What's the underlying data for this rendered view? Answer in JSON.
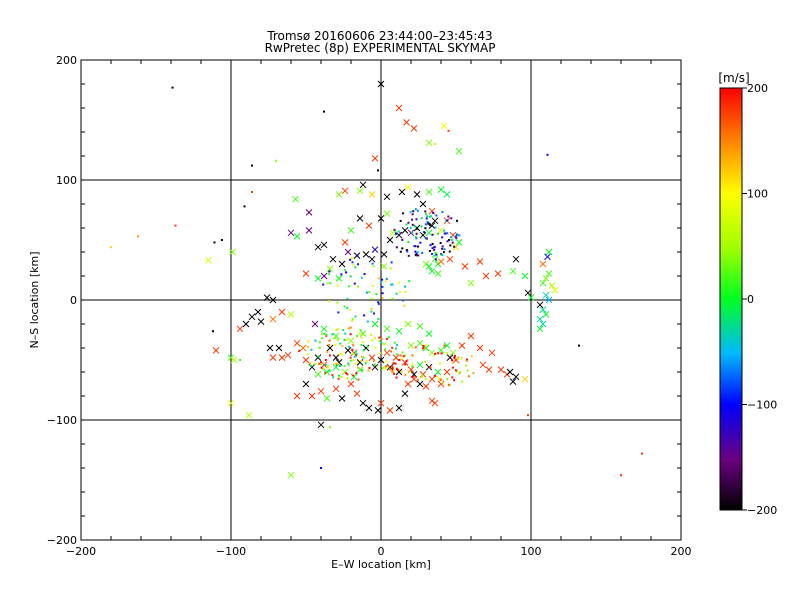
{
  "chart_data": {
    "type": "scatter",
    "title": "Tromsø 20160606 23:44:00–23:45:43",
    "subtitle": "RwPretec (8p) EXPERIMENTAL SKYMAP",
    "xlabel": "E–W location [km]",
    "ylabel": "N–S location [km]",
    "xlim": [
      -200,
      200
    ],
    "ylim": [
      -200,
      200
    ],
    "x_ticks": [
      "−200",
      "−100",
      "0",
      "100",
      "200"
    ],
    "y_ticks": [
      "−200",
      "−100",
      "0",
      "100",
      "200"
    ],
    "grid": "lines at ±100 and 0 km",
    "colorbar": {
      "label": "[m/s]",
      "range": [
        -200,
        200
      ],
      "ticks": [
        "200",
        "100",
        "0",
        "−100",
        "−200"
      ],
      "colormap": "black-purple-blue-cyan-green-yellow-red"
    },
    "marker_legend": "dots and x-crosses, color = velocity [m/s]",
    "points": [
      [
        0,
        180,
        -200,
        "x"
      ],
      [
        12,
        160,
        180,
        "x"
      ],
      [
        17,
        148,
        180,
        "x"
      ],
      [
        22,
        143,
        180,
        "x"
      ],
      [
        -38,
        157,
        -200,
        "."
      ],
      [
        -139,
        177,
        -200,
        "."
      ],
      [
        42,
        145,
        100,
        "x"
      ],
      [
        45,
        141,
        180,
        "."
      ],
      [
        32,
        131,
        40,
        "x"
      ],
      [
        36,
        130,
        60,
        "."
      ],
      [
        52,
        124,
        20,
        "x"
      ],
      [
        111,
        121,
        -100,
        "."
      ],
      [
        -4,
        118,
        180,
        "x"
      ],
      [
        -2,
        108,
        -200,
        "."
      ],
      [
        -86,
        112,
        -200,
        "."
      ],
      [
        -70,
        116,
        40,
        "."
      ],
      [
        -57,
        84,
        20,
        "x"
      ],
      [
        -48,
        73,
        -150,
        "x"
      ],
      [
        -28,
        88,
        40,
        "x"
      ],
      [
        -24,
        91,
        180,
        "x"
      ],
      [
        -14,
        91,
        40,
        "x"
      ],
      [
        -12,
        96,
        -200,
        "x"
      ],
      [
        -6,
        88,
        120,
        "x"
      ],
      [
        4,
        86,
        -200,
        "x"
      ],
      [
        14,
        90,
        -200,
        "x"
      ],
      [
        18,
        94,
        100,
        "x"
      ],
      [
        24,
        88,
        -200,
        "x"
      ],
      [
        32,
        90,
        20,
        "x"
      ],
      [
        40,
        92,
        0,
        "x"
      ],
      [
        44,
        88,
        -10,
        "x"
      ],
      [
        28,
        80,
        -200,
        "x"
      ],
      [
        34,
        74,
        180,
        "x"
      ],
      [
        -86,
        90,
        180,
        "."
      ],
      [
        -91,
        78,
        -200,
        "."
      ],
      [
        -106,
        50,
        -200,
        "."
      ],
      [
        -111,
        48,
        -200,
        "."
      ],
      [
        -99,
        40,
        40,
        "x"
      ],
      [
        -115,
        33,
        80,
        "x"
      ],
      [
        -180,
        44,
        120,
        "."
      ],
      [
        -162,
        53,
        140,
        "."
      ],
      [
        -137,
        62,
        180,
        "."
      ],
      [
        -56,
        53,
        0,
        "x"
      ],
      [
        -60,
        56,
        -150,
        "x"
      ],
      [
        -48,
        58,
        -150,
        "x"
      ],
      [
        -42,
        44,
        -200,
        "x"
      ],
      [
        -38,
        46,
        -200,
        "x"
      ],
      [
        -22,
        40,
        -150,
        "x"
      ],
      [
        -16,
        37,
        -200,
        "x"
      ],
      [
        -10,
        38,
        -200,
        "x"
      ],
      [
        -6,
        34,
        -200,
        "x"
      ],
      [
        -4,
        42,
        -120,
        "x"
      ],
      [
        2,
        38,
        -200,
        "x"
      ],
      [
        6,
        50,
        -200,
        "x"
      ],
      [
        8,
        56,
        60,
        "x"
      ],
      [
        12,
        54,
        -200,
        "x"
      ],
      [
        16,
        58,
        -200,
        "x"
      ],
      [
        20,
        56,
        -150,
        "x"
      ],
      [
        24,
        60,
        -200,
        "x"
      ],
      [
        28,
        54,
        -200,
        "x"
      ],
      [
        32,
        56,
        0,
        "x"
      ],
      [
        34,
        62,
        -200,
        "x"
      ],
      [
        36,
        66,
        -200,
        "x"
      ],
      [
        40,
        58,
        80,
        "x"
      ],
      [
        44,
        66,
        180,
        "x"
      ],
      [
        48,
        54,
        180,
        "x"
      ],
      [
        52,
        48,
        0,
        "x"
      ],
      [
        -8,
        62,
        180,
        "x"
      ],
      [
        -14,
        68,
        -200,
        "x"
      ],
      [
        -20,
        58,
        20,
        "x"
      ],
      [
        -24,
        48,
        180,
        "x"
      ],
      [
        0,
        68,
        -200,
        "x"
      ],
      [
        4,
        72,
        40,
        "x"
      ],
      [
        2,
        28,
        40,
        "x"
      ],
      [
        -26,
        30,
        -200,
        "x"
      ],
      [
        -32,
        34,
        -200,
        "x"
      ],
      [
        -34,
        26,
        40,
        "x"
      ],
      [
        -38,
        20,
        -150,
        "x"
      ],
      [
        -28,
        18,
        0,
        "x"
      ],
      [
        -42,
        18,
        0,
        "x"
      ],
      [
        -50,
        22,
        180,
        "x"
      ],
      [
        30,
        30,
        40,
        "x"
      ],
      [
        32,
        28,
        0,
        "x"
      ],
      [
        36,
        34,
        20,
        "x"
      ],
      [
        38,
        30,
        0,
        "x"
      ],
      [
        34,
        24,
        0,
        "x"
      ],
      [
        38,
        22,
        20,
        "x"
      ],
      [
        40,
        32,
        160,
        "x"
      ],
      [
        46,
        34,
        180,
        "x"
      ],
      [
        50,
        44,
        120,
        "x"
      ],
      [
        56,
        28,
        180,
        "x"
      ],
      [
        60,
        14,
        40,
        "x"
      ],
      [
        70,
        20,
        180,
        "x"
      ],
      [
        66,
        32,
        180,
        "x"
      ],
      [
        78,
        22,
        180,
        "x"
      ],
      [
        90,
        34,
        -200,
        "x"
      ],
      [
        88,
        24,
        20,
        "x"
      ],
      [
        96,
        20,
        0,
        "x"
      ],
      [
        98,
        6,
        -200,
        "x"
      ],
      [
        100,
        2,
        0,
        "x"
      ],
      [
        108,
        30,
        160,
        "x"
      ],
      [
        110,
        18,
        40,
        "x"
      ],
      [
        112,
        22,
        20,
        "x"
      ],
      [
        108,
        14,
        20,
        "x"
      ],
      [
        114,
        12,
        60,
        "x"
      ],
      [
        116,
        8,
        80,
        "x"
      ],
      [
        110,
        4,
        -30,
        "x"
      ],
      [
        112,
        0,
        -50,
        "x"
      ],
      [
        106,
        -4,
        -200,
        "x"
      ],
      [
        108,
        -8,
        -30,
        "x"
      ],
      [
        110,
        -12,
        0,
        "x"
      ],
      [
        106,
        -16,
        -30,
        "x"
      ],
      [
        108,
        -20,
        -30,
        "x"
      ],
      [
        111,
        36,
        -100,
        "x"
      ],
      [
        112,
        40,
        0,
        "x"
      ],
      [
        106,
        -24,
        0,
        "x"
      ],
      [
        132,
        -38,
        -200,
        "."
      ],
      [
        -76,
        2,
        -200,
        "x"
      ],
      [
        -72,
        0,
        -200,
        "x"
      ],
      [
        -82,
        -10,
        -200,
        "x"
      ],
      [
        -86,
        -14,
        -200,
        "x"
      ],
      [
        -90,
        -20,
        -200,
        "x"
      ],
      [
        -94,
        -24,
        180,
        "x"
      ],
      [
        -80,
        -18,
        -200,
        "x"
      ],
      [
        -72,
        -16,
        160,
        "x"
      ],
      [
        -66,
        -10,
        180,
        "x"
      ],
      [
        -60,
        -12,
        60,
        "x"
      ],
      [
        -112,
        -26,
        -200,
        "."
      ],
      [
        -110,
        -42,
        180,
        "x"
      ],
      [
        -100,
        -48,
        20,
        "x"
      ],
      [
        -94,
        -50,
        20,
        "."
      ],
      [
        -100,
        -86,
        80,
        "x"
      ],
      [
        -88,
        -96,
        60,
        "x"
      ],
      [
        -74,
        -40,
        -200,
        "x"
      ],
      [
        -72,
        -48,
        180,
        "x"
      ],
      [
        -68,
        -40,
        -200,
        "x"
      ],
      [
        -66,
        -48,
        180,
        "x"
      ],
      [
        -62,
        -46,
        180,
        "x"
      ],
      [
        -56,
        -36,
        180,
        "x"
      ],
      [
        -52,
        -40,
        160,
        "x"
      ],
      [
        -50,
        -50,
        180,
        "x"
      ],
      [
        -46,
        -56,
        -200,
        "x"
      ],
      [
        -42,
        -48,
        -200,
        "x"
      ],
      [
        -38,
        -54,
        180,
        "x"
      ],
      [
        -34,
        -40,
        -200,
        "x"
      ],
      [
        -30,
        -48,
        -200,
        "x"
      ],
      [
        -28,
        -52,
        -200,
        "x"
      ],
      [
        -22,
        -42,
        -200,
        "x"
      ],
      [
        -18,
        -44,
        180,
        "x"
      ],
      [
        -14,
        -52,
        -200,
        "x"
      ],
      [
        -10,
        -40,
        -200,
        "x"
      ],
      [
        -6,
        -48,
        180,
        "x"
      ],
      [
        -4,
        -56,
        -200,
        "x"
      ],
      [
        0,
        -50,
        -200,
        "x"
      ],
      [
        4,
        -44,
        180,
        "x"
      ],
      [
        6,
        -56,
        -200,
        "x"
      ],
      [
        10,
        -48,
        180,
        "x"
      ],
      [
        12,
        -60,
        -200,
        "x"
      ],
      [
        16,
        -52,
        180,
        "x"
      ],
      [
        20,
        -58,
        180,
        "x"
      ],
      [
        22,
        -62,
        -200,
        "x"
      ],
      [
        26,
        -54,
        0,
        "x"
      ],
      [
        28,
        -62,
        180,
        "x"
      ],
      [
        32,
        -56,
        -200,
        "x"
      ],
      [
        34,
        -66,
        180,
        "x"
      ],
      [
        38,
        -60,
        0,
        "x"
      ],
      [
        40,
        -70,
        180,
        "x"
      ],
      [
        44,
        -60,
        180,
        "x"
      ],
      [
        46,
        -48,
        -200,
        "x"
      ],
      [
        50,
        -50,
        180,
        "x"
      ],
      [
        54,
        -38,
        180,
        "x"
      ],
      [
        60,
        -30,
        180,
        "x"
      ],
      [
        66,
        -40,
        180,
        "x"
      ],
      [
        68,
        -54,
        180,
        "x"
      ],
      [
        72,
        -58,
        180,
        "x"
      ],
      [
        74,
        -44,
        180,
        "x"
      ],
      [
        80,
        -58,
        180,
        "x"
      ],
      [
        84,
        -62,
        180,
        "x"
      ],
      [
        88,
        -68,
        -200,
        "x"
      ],
      [
        86,
        -60,
        -200,
        "x"
      ],
      [
        90,
        -64,
        -200,
        "x"
      ],
      [
        96,
        -66,
        120,
        "x"
      ],
      [
        98,
        -96,
        180,
        "."
      ],
      [
        -40,
        -104,
        -200,
        "x"
      ],
      [
        -34,
        -106,
        40,
        "."
      ],
      [
        -60,
        -146,
        40,
        "x"
      ],
      [
        -40,
        -140,
        -100,
        "."
      ],
      [
        -50,
        -70,
        -200,
        "x"
      ],
      [
        -56,
        -80,
        180,
        "x"
      ],
      [
        -46,
        -80,
        180,
        "x"
      ],
      [
        -40,
        -76,
        180,
        "x"
      ],
      [
        -36,
        -82,
        20,
        "x"
      ],
      [
        -30,
        -74,
        180,
        "x"
      ],
      [
        -26,
        -82,
        -200,
        "x"
      ],
      [
        -20,
        -70,
        180,
        "x"
      ],
      [
        -16,
        -78,
        180,
        "x"
      ],
      [
        -12,
        -86,
        -200,
        "x"
      ],
      [
        -8,
        -90,
        -200,
        "x"
      ],
      [
        0,
        -86,
        180,
        "x"
      ],
      [
        6,
        -92,
        180,
        "x"
      ],
      [
        12,
        -90,
        -200,
        "x"
      ],
      [
        16,
        -78,
        -200,
        "x"
      ],
      [
        18,
        -70,
        180,
        "x"
      ],
      [
        22,
        -66,
        180,
        "x"
      ],
      [
        26,
        -70,
        -200,
        "x"
      ],
      [
        30,
        -72,
        180,
        "x"
      ],
      [
        34,
        -84,
        180,
        "x"
      ],
      [
        36,
        -86,
        180,
        "x"
      ],
      [
        -2,
        -92,
        -200,
        "x"
      ],
      [
        -30,
        -56,
        0,
        "x"
      ],
      [
        -24,
        -60,
        40,
        "x"
      ],
      [
        -18,
        -64,
        0,
        "x"
      ],
      [
        -14,
        -58,
        20,
        "x"
      ],
      [
        -36,
        -60,
        0,
        "x"
      ],
      [
        -42,
        -62,
        20,
        "x"
      ],
      [
        20,
        -38,
        40,
        "x"
      ],
      [
        26,
        -36,
        20,
        "x"
      ],
      [
        30,
        -40,
        0,
        "x"
      ],
      [
        34,
        -44,
        40,
        "x"
      ],
      [
        40,
        -42,
        20,
        "x"
      ],
      [
        44,
        -38,
        0,
        "x"
      ],
      [
        48,
        -44,
        40,
        "x"
      ],
      [
        -44,
        -20,
        -150,
        "x"
      ],
      [
        -38,
        -24,
        0,
        "x"
      ],
      [
        -30,
        -30,
        20,
        "x"
      ],
      [
        -20,
        -34,
        40,
        "x"
      ],
      [
        -12,
        -28,
        20,
        "x"
      ],
      [
        -4,
        -20,
        0,
        "x"
      ],
      [
        4,
        -24,
        20,
        "x"
      ],
      [
        12,
        -26,
        0,
        "x"
      ],
      [
        18,
        -20,
        40,
        "x"
      ],
      [
        26,
        -22,
        20,
        "x"
      ],
      [
        32,
        -28,
        0,
        "x"
      ],
      [
        160,
        -146,
        180,
        "."
      ],
      [
        174,
        -128,
        180,
        "."
      ],
      [
        -98,
        -50,
        60,
        "x"
      ]
    ]
  }
}
